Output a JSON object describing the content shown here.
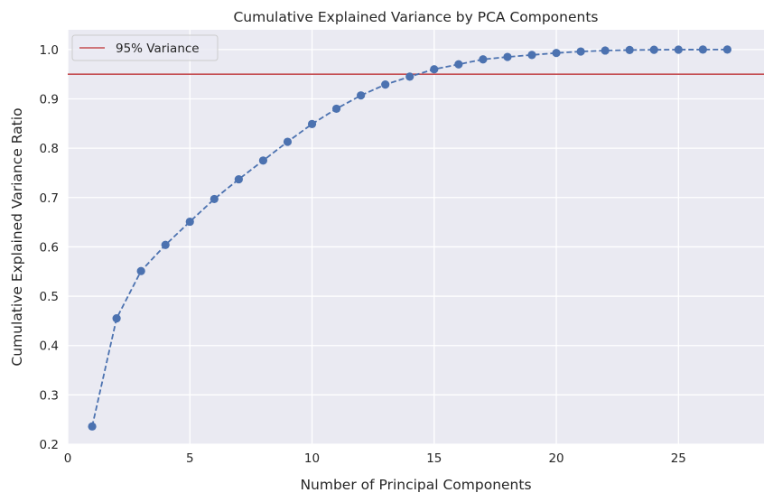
{
  "chart_data": {
    "type": "line",
    "title": "Cumulative Explained Variance by PCA Components",
    "xlabel": "Number of Principal Components",
    "ylabel": "Cumulative Explained Variance Ratio",
    "xlim": [
      0,
      28.5
    ],
    "ylim": [
      0.2,
      1.04
    ],
    "xticks": [
      0,
      5,
      10,
      15,
      20,
      25
    ],
    "yticks": [
      0.2,
      0.3,
      0.4,
      0.5,
      0.6,
      0.7,
      0.8,
      0.9,
      1.0
    ],
    "xtick_labels": [
      "0",
      "5",
      "10",
      "15",
      "20",
      "25"
    ],
    "ytick_labels": [
      "0.2",
      "0.3",
      "0.4",
      "0.5",
      "0.6",
      "0.7",
      "0.8",
      "0.9",
      "1.0"
    ],
    "grid": true,
    "legend_position": "top-left",
    "series": [
      {
        "style": "dashed-line-with-markers",
        "color": "#4c72b0",
        "x": [
          1,
          2,
          3,
          4,
          5,
          6,
          7,
          8,
          9,
          10,
          11,
          12,
          13,
          14,
          15,
          16,
          17,
          18,
          19,
          20,
          21,
          22,
          23,
          24,
          25,
          26,
          27
        ],
        "y": [
          0.236,
          0.455,
          0.551,
          0.604,
          0.651,
          0.697,
          0.737,
          0.775,
          0.813,
          0.849,
          0.88,
          0.907,
          0.929,
          0.945,
          0.96,
          0.97,
          0.98,
          0.985,
          0.989,
          0.993,
          0.996,
          0.998,
          0.999,
          0.9995,
          0.9998,
          0.9999,
          1.0
        ]
      }
    ],
    "reference_line": {
      "orientation": "horizontal",
      "y": 0.95,
      "color": "#c44e52",
      "label": "95% Variance"
    },
    "colors": {
      "plot_background": "#eaeaf2",
      "grid": "#ffffff",
      "text": "#262626"
    }
  }
}
